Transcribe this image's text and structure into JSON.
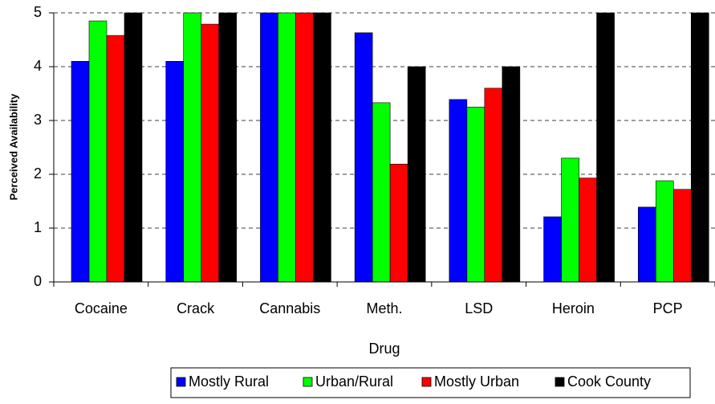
{
  "chart_data": {
    "type": "bar",
    "y_label": "Perceived Availability",
    "x_label": "Drug",
    "categories": [
      "Cocaine",
      "Crack",
      "Cannabis",
      "Meth.",
      "LSD",
      "Heroin",
      "PCP"
    ],
    "series": [
      {
        "name": "Mostly Rural",
        "color": "#0000ff",
        "values": [
          4.1,
          4.1,
          5,
          4.63,
          3.39,
          1.21,
          1.39
        ]
      },
      {
        "name": "Urban/Rural",
        "color": "#00ff00",
        "values": [
          4.85,
          5,
          5,
          3.33,
          3.25,
          2.3,
          1.88
        ]
      },
      {
        "name": "Mostly Urban",
        "color": "#ff0000",
        "values": [
          4.58,
          4.79,
          5,
          2.19,
          3.6,
          1.93,
          1.72
        ]
      },
      {
        "name": "Cook County",
        "color": "#000000",
        "values": [
          5,
          5,
          5,
          4,
          4,
          5,
          5
        ]
      }
    ],
    "ylim": [
      0,
      5
    ],
    "yticks": [
      0,
      1,
      2,
      3,
      4,
      5
    ],
    "grid": true,
    "legend": "bottom"
  }
}
